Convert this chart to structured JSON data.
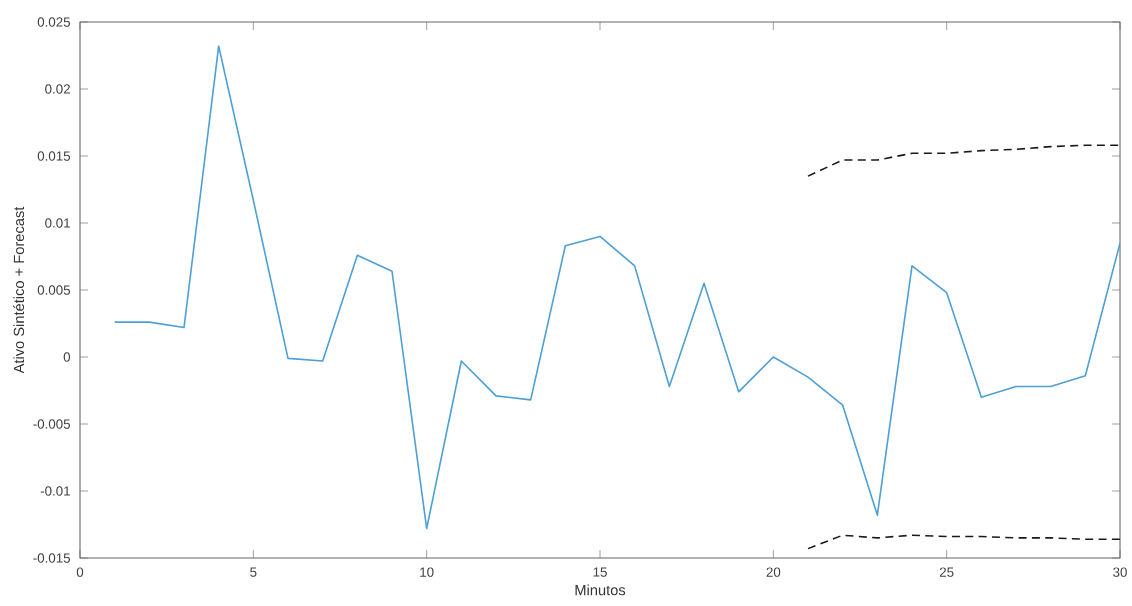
{
  "chart_data": {
    "type": "line",
    "xlabel": "Minutos",
    "ylabel": "Ativo Sintético + Forecast",
    "xlim": [
      0,
      30
    ],
    "ylim": [
      -0.015,
      0.025
    ],
    "xticks": [
      0,
      5,
      10,
      15,
      20,
      25,
      30
    ],
    "yticks": [
      {
        "value": -0.015,
        "label": "-0.015"
      },
      {
        "value": -0.01,
        "label": "-0.01"
      },
      {
        "value": -0.005,
        "label": "-0.005"
      },
      {
        "value": 0,
        "label": "0"
      },
      {
        "value": 0.005,
        "label": "0.005"
      },
      {
        "value": 0.01,
        "label": "0.01"
      },
      {
        "value": 0.015,
        "label": "0.015"
      },
      {
        "value": 0.02,
        "label": "0.02"
      },
      {
        "value": 0.025,
        "label": "0.025"
      }
    ],
    "series": [
      {
        "color": "#4d9fd6",
        "line_style": "solid",
        "x": [
          1,
          2,
          3,
          4,
          5,
          6,
          7,
          8,
          9,
          10,
          11,
          12,
          13,
          14,
          15,
          16,
          17,
          18,
          19,
          20,
          21,
          22,
          23,
          24,
          25,
          26,
          27,
          28,
          29,
          30
        ],
        "values": [
          0.0026,
          0.0026,
          0.0022,
          0.0232,
          0.0117,
          -0.0001,
          -0.0003,
          0.0076,
          0.0064,
          -0.0128,
          -0.0003,
          -0.0029,
          -0.0032,
          0.0083,
          0.009,
          0.0068,
          -0.0022,
          0.0055,
          -0.0026,
          0.0,
          -0.0015,
          -0.0036,
          -0.0118,
          0.0068,
          0.0048,
          -0.003,
          -0.0022,
          -0.0022,
          -0.0014,
          0.0085
        ]
      },
      {
        "color": "#1a1a1a",
        "line_style": "dashed",
        "x": [
          21,
          22,
          23,
          24,
          25,
          26,
          27,
          28,
          29,
          30
        ],
        "values": [
          0.0135,
          0.0147,
          0.0147,
          0.0152,
          0.0152,
          0.0154,
          0.0155,
          0.0157,
          0.0158,
          0.0158
        ]
      },
      {
        "color": "#1a1a1a",
        "line_style": "dashed",
        "x": [
          21,
          22,
          23,
          24,
          25,
          26,
          27,
          28,
          29,
          30
        ],
        "values": [
          -0.0143,
          -0.0133,
          -0.0135,
          -0.0133,
          -0.0134,
          -0.0134,
          -0.0135,
          -0.0135,
          -0.0136,
          -0.0136
        ]
      }
    ]
  }
}
